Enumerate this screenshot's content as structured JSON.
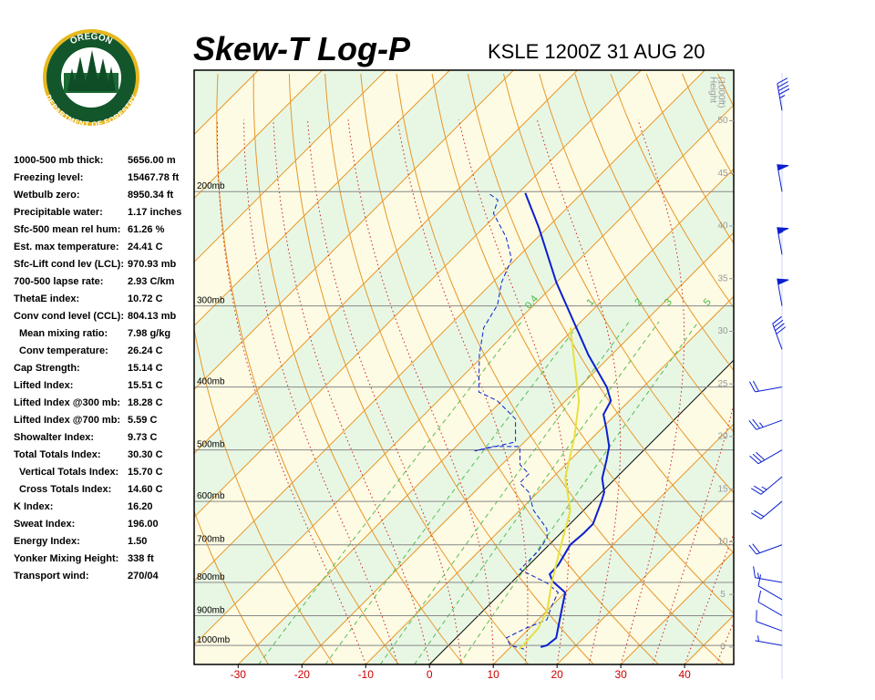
{
  "logo": {
    "top": "OREGON",
    "bottom": "DEPARTMENT OF FORESTRY"
  },
  "indices": {
    "rows": [
      {
        "label": "1000-500 mb thick:",
        "value": "5656.00 m"
      },
      {
        "label": "Freezing level:",
        "value": "15467.78 ft"
      },
      {
        "label": "Wetbulb zero:",
        "value": "8950.34 ft"
      },
      {
        "label": "Precipitable water:",
        "value": "1.17 inches"
      },
      {
        "label": "Sfc-500 mean rel hum:",
        "value": "61.26 %"
      },
      {
        "label": "Est. max temperature:",
        "value": "24.41 C"
      },
      {
        "label": "Sfc-Lift cond lev (LCL):",
        "value": "970.93 mb"
      },
      {
        "label": "700-500 lapse rate:",
        "value": "2.93 C/km"
      },
      {
        "label": "ThetaE index:",
        "value": "10.72 C"
      },
      {
        "label": "Conv cond level (CCL):",
        "value": "804.13 mb"
      },
      {
        "label": "Mean mixing ratio:",
        "value": "7.98 g/kg",
        "indent": true
      },
      {
        "label": "Conv temperature:",
        "value": "26.24 C",
        "indent": true
      },
      {
        "label": "Cap Strength:",
        "value": "15.14 C"
      },
      {
        "label": "Lifted Index:",
        "value": "15.51 C"
      },
      {
        "label": "Lifted Index @300 mb:",
        "value": "18.28 C"
      },
      {
        "label": "Lifted Index @700 mb:",
        "value": "5.59 C"
      },
      {
        "label": "Showalter Index:",
        "value": "9.73 C"
      },
      {
        "label": "Total Totals Index:",
        "value": "30.30 C"
      },
      {
        "label": "Vertical Totals Index:",
        "value": "15.70 C",
        "indent": true
      },
      {
        "label": "Cross Totals Index:",
        "value": "14.60 C",
        "indent": true
      },
      {
        "label": "K Index:",
        "value": "16.20"
      },
      {
        "label": "Sweat Index:",
        "value": "196.00"
      },
      {
        "label": "Energy Index:",
        "value": "1.50"
      },
      {
        "label": "Yonker Mixing Height:",
        "value": "338 ft"
      },
      {
        "label": "Transport wind:",
        "value": "270/04"
      }
    ]
  },
  "chart_data": {
    "type": "skewt",
    "title": "Skew-T Log-P",
    "subtitle": "KSLE 1200Z 31 AUG 20",
    "xlim": [
      -36.9,
      47.7
    ],
    "xticks": [
      -30,
      -20,
      -10,
      0,
      10,
      20,
      30,
      40
    ],
    "ylim": [
      1070,
      130
    ],
    "yscale": "log",
    "yticks": [
      {
        "value": 1000,
        "label": "1000mb"
      },
      {
        "value": 900,
        "label": "900mb"
      },
      {
        "value": 800,
        "label": "800mb"
      },
      {
        "value": 700,
        "label": "700mb"
      },
      {
        "value": 600,
        "label": "600mb"
      },
      {
        "value": 500,
        "label": "500mb"
      },
      {
        "value": 400,
        "label": "400mb"
      },
      {
        "value": 300,
        "label": "300mb"
      },
      {
        "value": 200,
        "label": "200mb"
      }
    ],
    "y2label": [
      "Height",
      "(1000ft)"
    ],
    "y2lim": [
      -1.65,
      54.8
    ],
    "y2ticks": [
      0,
      5,
      10,
      15,
      20,
      25,
      30,
      35,
      40,
      45,
      50
    ],
    "mixing_ratio_labels": [
      0.4,
      1,
      2,
      3,
      5
    ],
    "series": [
      {
        "color": "#0a1fd0",
        "style": "solid",
        "pressure": [
          1006,
          1000,
          974,
          913,
          829,
          797,
          777,
          752,
          700,
          672,
          650,
          600,
          581,
          553,
          518,
          494,
          463,
          441,
          420,
          400,
          357,
          276,
          227,
          201
        ],
        "values": [
          14.7,
          15.4,
          15.7,
          13.4,
          10.0,
          6.3,
          4.7,
          4.6,
          3.3,
          3.6,
          3.6,
          1.4,
          0.4,
          -2.1,
          -4.3,
          -6.0,
          -9.3,
          -11.9,
          -12.9,
          -15.7,
          -23.6,
          -40.0,
          -51.4,
          -58.9
        ]
      },
      {
        "color": "#0a1fd0",
        "style": "dashed",
        "pressure": [
          1013,
          1000,
          974,
          943,
          913,
          870,
          829,
          802,
          764,
          717,
          683,
          661,
          619,
          581,
          562,
          544,
          527,
          494,
          494,
          502,
          486,
          448,
          420,
          407,
          357,
          324,
          299,
          276,
          254,
          235,
          216,
          206,
          201
        ],
        "values": [
          12.4,
          9.7,
          7.9,
          9.3,
          11.4,
          10.0,
          8.9,
          5.7,
          -0.7,
          -0.7,
          -1.4,
          -2.9,
          -7.9,
          -11.4,
          -14.3,
          -14.3,
          -17.1,
          -20.0,
          -24.3,
          -26.4,
          -21.4,
          -25.0,
          -30.7,
          -35.0,
          -40.7,
          -44.3,
          -45.7,
          -48.6,
          -50.7,
          -55.0,
          -60.7,
          -62.1,
          -64.7
        ]
      },
      {
        "color": "#e8e040",
        "style": "solid",
        "pressure": [
          1013,
          943,
          884,
          802,
          705,
          619,
          553,
          478,
          420,
          369,
          324
        ],
        "values": [
          11.7,
          11.4,
          10.0,
          6.4,
          2.1,
          -2.1,
          -7.9,
          -12.9,
          -17.9,
          -24.3,
          -30.7
        ]
      }
    ],
    "winds": {
      "color": "#0a1fd0",
      "pressure": [
        1000,
        950,
        900,
        850,
        800,
        700,
        600,
        550,
        500,
        450,
        400,
        350,
        300,
        250,
        200,
        150
      ],
      "direction": [
        280,
        290,
        300,
        300,
        280,
        250,
        230,
        230,
        240,
        250,
        260,
        340,
        350,
        350,
        350,
        350
      ],
      "speed": [
        5,
        10,
        10,
        10,
        15,
        20,
        20,
        25,
        30,
        25,
        20,
        40,
        50,
        55,
        50,
        45
      ]
    }
  }
}
